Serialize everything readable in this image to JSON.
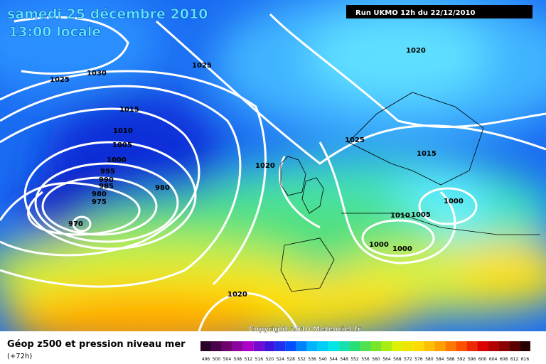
{
  "header": {
    "date": "samedi 25 décembre 2010",
    "time": "13:00 locale",
    "run": "Run UKMO 12h du 22/12/2010"
  },
  "map": {
    "isobar_labels": [
      "1030",
      "1025",
      "1025",
      "1015",
      "1010",
      "1005",
      "1000",
      "995",
      "990",
      "985",
      "980",
      "975",
      "970",
      "980",
      "1020",
      "1020",
      "1025",
      "1015",
      "1010",
      "1005",
      "1000",
      "1000",
      "1000",
      "1020"
    ],
    "copyright": "Copyright 2010 Meteociel.fr"
  },
  "legend": {
    "title": "Géop z500 et pression niveau mer",
    "lead": "(+72h)",
    "colorbar": [
      "496",
      "500",
      "504",
      "508",
      "512",
      "516",
      "520",
      "524",
      "528",
      "532",
      "536",
      "540",
      "544",
      "548",
      "552",
      "556",
      "560",
      "564",
      "568",
      "572",
      "576",
      "580",
      "584",
      "588",
      "592",
      "596",
      "600",
      "604",
      "608",
      "612",
      "616"
    ]
  }
}
